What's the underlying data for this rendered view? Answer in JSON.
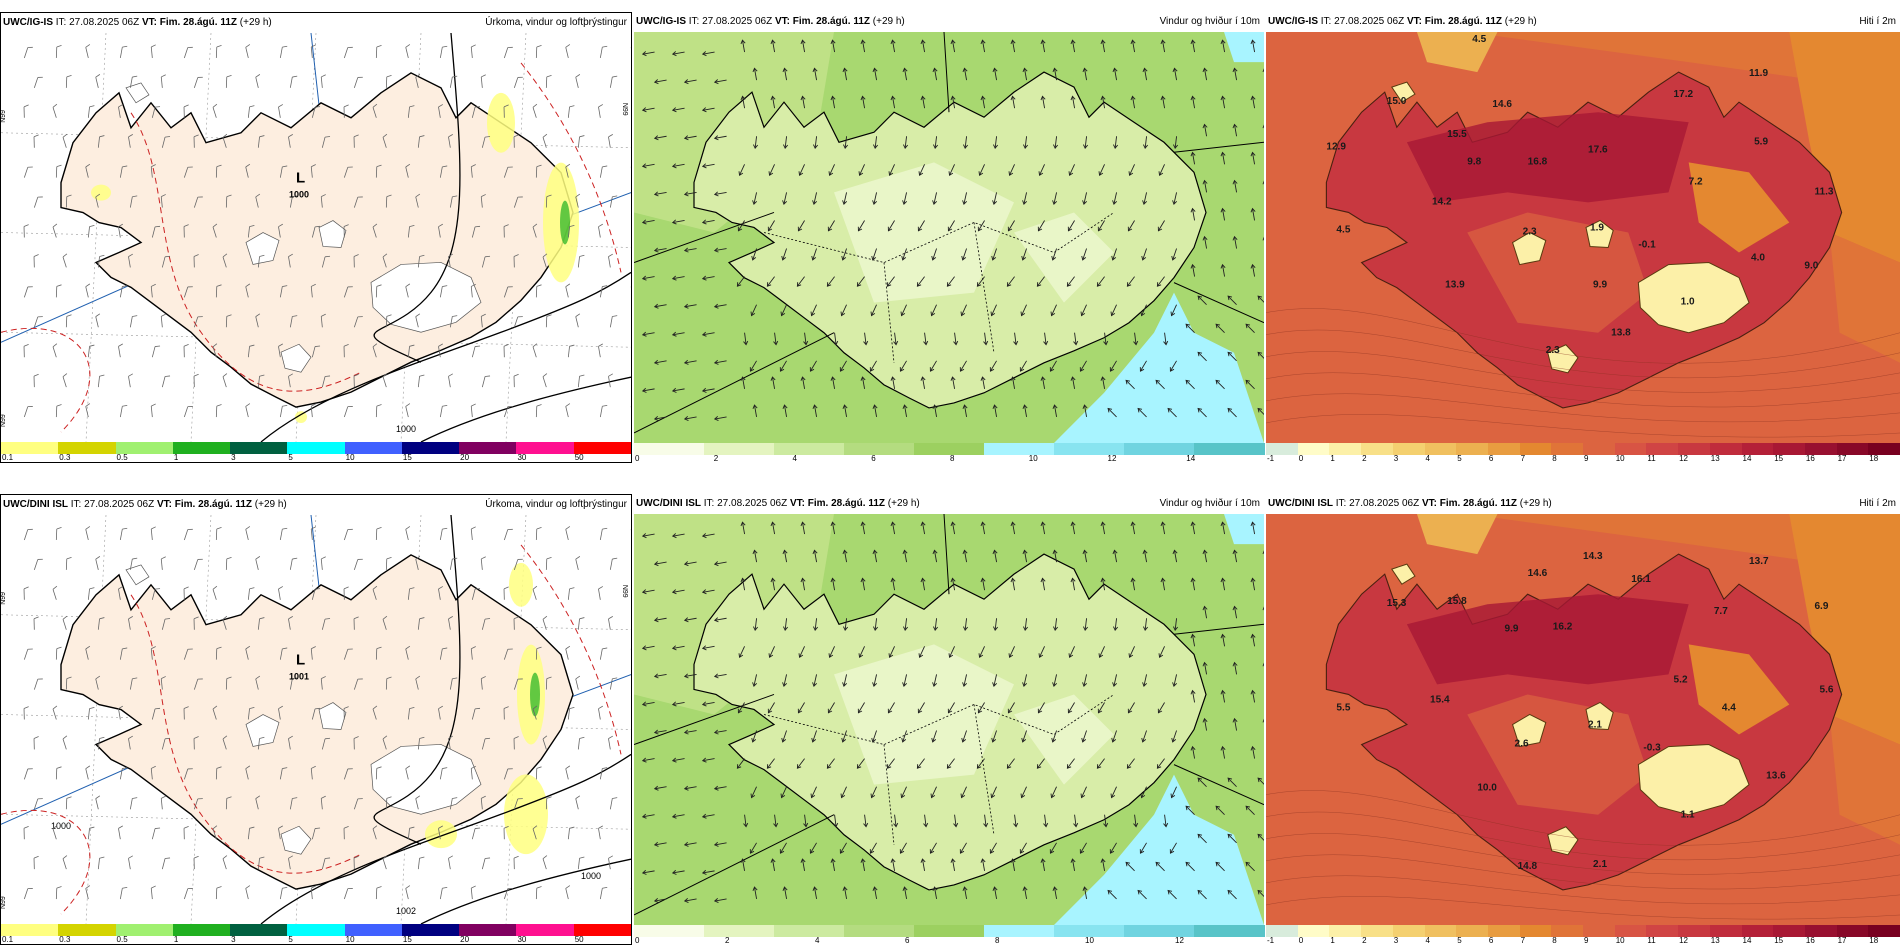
{
  "panels": [
    {
      "id": "p1",
      "model": "UWC/IG-IS",
      "it": "IT: 27.08.2025 06Z",
      "vt": "VT: Fim. 28.ágú. 11Z",
      "lead": "(+29 h)",
      "title": "Úrkoma, vindur og loftþrýstingur",
      "type": "precip",
      "low_label": "L",
      "low_value": "1000",
      "isobar_labels": [
        "1000"
      ],
      "lat_labels": [
        "N99",
        "N99",
        "N99"
      ],
      "colorbar": {
        "colors": [
          "#ffff80",
          "#d4d400",
          "#a0f070",
          "#20b020",
          "#006040",
          "#00ffff",
          "#4060ff",
          "#000080",
          "#800060",
          "#ff1090",
          "#ff0000"
        ],
        "ticks": [
          "0.1",
          "0.3",
          "0.5",
          "1",
          "3",
          "5",
          "10",
          "15",
          "20",
          "30",
          "50"
        ]
      }
    },
    {
      "id": "p2",
      "model": "UWC/IG-IS",
      "it": "IT: 27.08.2025 06Z",
      "vt": "VT: Fim. 28.ágú. 11Z",
      "lead": "(+29 h)",
      "title": "Vindur og hviður í 10m",
      "type": "wind",
      "colorbar": {
        "colors": [
          "#f8fce8",
          "#e4f4c0",
          "#cceaa0",
          "#b4dc80",
          "#9cd060",
          "#a8f4ff",
          "#88e4f0",
          "#70d4e0",
          "#58c4c8"
        ],
        "ticks": [
          "0",
          "2",
          "4",
          "6",
          "8",
          "10",
          "12",
          "14"
        ]
      }
    },
    {
      "id": "p3",
      "model": "UWC/IG-IS",
      "it": "IT: 27.08.2025 06Z",
      "vt": "VT: Fim. 28.ágú. 11Z",
      "lead": "(+29 h)",
      "title": "Hiti í 2m",
      "type": "temp",
      "values": [
        "4.5",
        "15.0",
        "14.6",
        "17.2",
        "11.9",
        "12.9",
        "15.5",
        "16.8",
        "17.6",
        "9.8",
        "5.9",
        "7.2",
        "11.3",
        "14.2",
        "4.5",
        "2.3",
        "1.9",
        "-0.1",
        "4.0",
        "9.0",
        "13.9",
        "9.9",
        "1.0",
        "13.8",
        "2.3"
      ],
      "colorbar": {
        "colors": [
          "#d8ecdc",
          "#fffcc8",
          "#fcf0a8",
          "#f8e088",
          "#f4d070",
          "#f0c060",
          "#ecb050",
          "#e89c40",
          "#e48830",
          "#e07438",
          "#dc6440",
          "#d85444",
          "#d04444",
          "#c83840",
          "#c02c3c",
          "#b42038",
          "#a81834",
          "#981030",
          "#880828",
          "#780020"
        ],
        "ticks": [
          "-1",
          "0",
          "1",
          "2",
          "3",
          "4",
          "5",
          "6",
          "7",
          "8",
          "9",
          "10",
          "11",
          "12",
          "13",
          "14",
          "15",
          "16",
          "17",
          "18"
        ]
      }
    },
    {
      "id": "p4",
      "model": "UWC/DINI ISL",
      "it": "IT: 27.08.2025 06Z",
      "vt": "VT: Fim. 28.ágú. 11Z",
      "lead": "(+29 h)",
      "title": "Úrkoma, vindur og loftþrýstingur",
      "type": "precip",
      "low_label": "L",
      "low_value": "1001",
      "isobar_labels": [
        "1002",
        "1000",
        "1000"
      ],
      "lat_labels": [
        "N99",
        "N99",
        "N99"
      ],
      "colorbar": {
        "colors": [
          "#ffff80",
          "#d4d400",
          "#a0f070",
          "#20b020",
          "#006040",
          "#00ffff",
          "#4060ff",
          "#000080",
          "#800060",
          "#ff1090",
          "#ff0000"
        ],
        "ticks": [
          "0.1",
          "0.3",
          "0.5",
          "1",
          "3",
          "5",
          "10",
          "15",
          "20",
          "30",
          "50"
        ]
      }
    },
    {
      "id": "p5",
      "model": "UWC/DINI ISL",
      "it": "IT: 27.08.2025 06Z",
      "vt": "VT: Fim. 28.ágú. 11Z",
      "lead": "(+29 h)",
      "title": "Vindur og hviður í 10m",
      "type": "wind",
      "colorbar": {
        "colors": [
          "#f8fce8",
          "#e4f4c0",
          "#cceaa0",
          "#b4dc80",
          "#9cd060",
          "#a8f4ff",
          "#88e4f0",
          "#70d4e0",
          "#58c4c8"
        ],
        "ticks": [
          "0",
          "2",
          "4",
          "6",
          "8",
          "10",
          "12"
        ]
      }
    },
    {
      "id": "p6",
      "model": "UWC/DINI ISL",
      "it": "IT: 27.08.2025 06Z",
      "vt": "VT: Fim. 28.ágú. 11Z",
      "lead": "(+29 h)",
      "title": "Hiti í 2m",
      "type": "temp",
      "values": [
        "14.3",
        "14.6",
        "16.1",
        "13.7",
        "15.3",
        "15.8",
        "9.9",
        "16.2",
        "7.7",
        "6.9",
        "5.2",
        "5.6",
        "5.5",
        "15.4",
        "2.6",
        "2.1",
        "-0.3",
        "4.4",
        "13.6",
        "10.0",
        "1.1",
        "14.8",
        "2.1"
      ],
      "colorbar": {
        "colors": [
          "#d8ecdc",
          "#fffcc8",
          "#fcf0a8",
          "#f8e088",
          "#f4d070",
          "#f0c060",
          "#ecb050",
          "#e89c40",
          "#e48830",
          "#e07438",
          "#dc6440",
          "#d85444",
          "#d04444",
          "#c83840",
          "#c02c3c",
          "#b42038",
          "#a81834",
          "#981030",
          "#880828",
          "#780020"
        ],
        "ticks": [
          "-1",
          "0",
          "1",
          "2",
          "3",
          "4",
          "5",
          "6",
          "7",
          "8",
          "9",
          "10",
          "11",
          "12",
          "13",
          "14",
          "15",
          "16",
          "17",
          "18"
        ]
      }
    }
  ]
}
